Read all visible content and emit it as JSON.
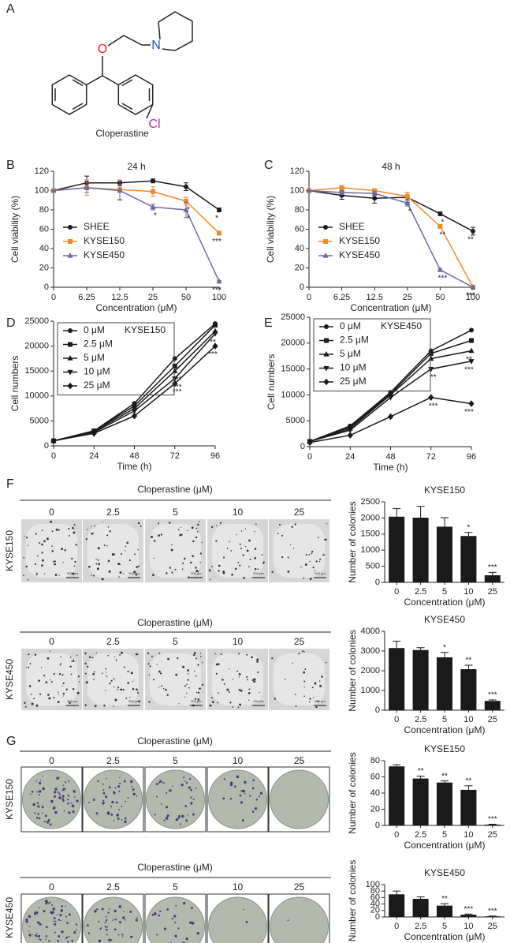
{
  "panel_labels": [
    "A",
    "B",
    "C",
    "D",
    "E",
    "F",
    "G"
  ],
  "structure": {
    "atoms": [
      "O",
      "N",
      "Cl"
    ],
    "name": "Cloperastine"
  },
  "image_panels": [
    {
      "header": "Cloperastine (μM)",
      "columns": [
        "0",
        "2.5",
        "5",
        "10",
        "25"
      ],
      "row_label": "KYSE150",
      "scale_label": "500 μm"
    },
    {
      "header": "Cloperastine (μM)",
      "columns": [
        "0",
        "2.5",
        "5",
        "10",
        "25"
      ],
      "row_label": "KYSE450",
      "scale_label": "500 μm"
    },
    {
      "header": "Cloperastine (μM)",
      "columns": [
        "0",
        "2.5",
        "5",
        "10",
        "25"
      ],
      "row_label": "KYSE150"
    },
    {
      "header": "Cloperastine (μM)",
      "columns": [
        "0",
        "2.5",
        "5",
        "10",
        "25"
      ],
      "row_label": "KYSE450"
    }
  ],
  "chart_data": [
    {
      "type": "line",
      "title": "24 h",
      "xlabel": "Concentration (μM)",
      "ylabel": "Cell viability (%)",
      "categories": [
        "0",
        "6.25",
        "12.5",
        "25",
        "50",
        "100"
      ],
      "ylim": [
        0,
        120
      ],
      "yticks": [
        0,
        20,
        40,
        60,
        80,
        100,
        120
      ],
      "legend": "bottom-left",
      "series": [
        {
          "name": "SHEE",
          "color": "#1a1a1a",
          "marker": "circle",
          "values": [
            100,
            108,
            108,
            110,
            104,
            80
          ],
          "errors": [
            0,
            7,
            3,
            2,
            4,
            2
          ],
          "significance": [
            null,
            null,
            null,
            null,
            null,
            "*"
          ]
        },
        {
          "name": "KYSE150",
          "color": "#f08a2c",
          "marker": "square",
          "values": [
            100,
            103,
            101,
            99,
            89,
            56
          ],
          "errors": [
            0,
            8,
            10,
            5,
            4,
            2
          ],
          "significance": [
            null,
            null,
            null,
            null,
            "*",
            "***"
          ]
        },
        {
          "name": "KYSE450",
          "color": "#6b6a9e",
          "marker": "triangle",
          "values": [
            100,
            103,
            100,
            83,
            80,
            6
          ],
          "errors": [
            0,
            5,
            10,
            3,
            8,
            1
          ],
          "significance": [
            null,
            null,
            null,
            "*",
            "*",
            "***"
          ]
        }
      ]
    },
    {
      "type": "line",
      "title": "48 h",
      "xlabel": "Concentration (μM)",
      "ylabel": "Cell viability (%)",
      "categories": [
        "0",
        "6.25",
        "12.5",
        "25",
        "50",
        "100"
      ],
      "ylim": [
        0,
        120
      ],
      "yticks": [
        0,
        20,
        40,
        60,
        80,
        100,
        120
      ],
      "legend": "bottom-left",
      "series": [
        {
          "name": "SHEE",
          "color": "#1a1a1a",
          "marker": "circle",
          "values": [
            100,
            95,
            92,
            93,
            76,
            58
          ],
          "errors": [
            0,
            4,
            5,
            5,
            2,
            4
          ],
          "significance": [
            null,
            null,
            null,
            null,
            "*",
            "**"
          ]
        },
        {
          "name": "KYSE150",
          "color": "#f08a2c",
          "marker": "square",
          "values": [
            100,
            103,
            100,
            94,
            63,
            0
          ],
          "errors": [
            0,
            2,
            2,
            4,
            2,
            1
          ],
          "significance": [
            null,
            null,
            null,
            null,
            "**",
            "***"
          ]
        },
        {
          "name": "KYSE450",
          "color": "#6b6a9e",
          "marker": "triangle",
          "values": [
            100,
            98,
            97,
            87,
            18,
            0
          ],
          "errors": [
            0,
            2,
            2,
            3,
            1,
            1
          ],
          "significance": [
            null,
            null,
            null,
            "*",
            "***",
            "***"
          ]
        }
      ]
    },
    {
      "type": "line",
      "title": "KYSE150",
      "xlabel": "Time (h)",
      "ylabel": "Cell numbers",
      "x": [
        0,
        24,
        48,
        72,
        96
      ],
      "xlim": [
        0,
        96
      ],
      "xticks": [
        0,
        24,
        48,
        72,
        96
      ],
      "ylim": [
        0,
        25000
      ],
      "yticks": [
        0,
        5000,
        10000,
        15000,
        20000,
        25000
      ],
      "legend": "top-left",
      "series": [
        {
          "name": "0 μM",
          "color": "#1a1a1a",
          "marker": "circle",
          "values": [
            1000,
            3000,
            8500,
            17500,
            24500
          ],
          "significance": [
            null,
            null,
            null,
            null,
            null
          ]
        },
        {
          "name": "2.5 μM",
          "color": "#1a1a1a",
          "marker": "square",
          "values": [
            1000,
            3000,
            8000,
            16000,
            24200
          ],
          "significance": [
            null,
            null,
            null,
            null,
            null
          ]
        },
        {
          "name": "5 μM",
          "color": "#1a1a1a",
          "marker": "triangle",
          "values": [
            1000,
            2900,
            7500,
            15000,
            23000
          ],
          "significance": [
            null,
            null,
            null,
            "***",
            null
          ]
        },
        {
          "name": "10 μM",
          "color": "#1a1a1a",
          "marker": "triangle-down",
          "values": [
            1000,
            2700,
            7000,
            13500,
            22500
          ],
          "significance": [
            null,
            null,
            null,
            "***",
            "**"
          ]
        },
        {
          "name": "25 μM",
          "color": "#1a1a1a",
          "marker": "diamond",
          "values": [
            1000,
            2500,
            6000,
            12500,
            20000
          ],
          "significance": [
            null,
            null,
            null,
            "***",
            "***"
          ]
        }
      ]
    },
    {
      "type": "line",
      "title": "KYSE450",
      "xlabel": "Time (h)",
      "ylabel": "Cell numbers",
      "x": [
        0,
        24,
        48,
        72,
        96
      ],
      "xlim": [
        0,
        96
      ],
      "xticks": [
        0,
        24,
        48,
        72,
        96
      ],
      "ylim": [
        0,
        25000
      ],
      "yticks": [
        0,
        5000,
        10000,
        15000,
        20000,
        25000
      ],
      "legend": "top-left",
      "series": [
        {
          "name": "0 μM",
          "color": "#1a1a1a",
          "marker": "circle",
          "values": [
            1000,
            4000,
            10500,
            18500,
            22500
          ],
          "significance": [
            null,
            null,
            null,
            null,
            null
          ]
        },
        {
          "name": "2.5 μM",
          "color": "#1a1a1a",
          "marker": "square",
          "values": [
            1000,
            3800,
            10200,
            18000,
            20500
          ],
          "significance": [
            null,
            null,
            null,
            null,
            null
          ]
        },
        {
          "name": "5 μM",
          "color": "#1a1a1a",
          "marker": "triangle",
          "values": [
            1000,
            3500,
            10000,
            17000,
            18500
          ],
          "significance": [
            null,
            null,
            null,
            null,
            "**"
          ]
        },
        {
          "name": "10 μM",
          "color": "#1a1a1a",
          "marker": "triangle-down",
          "values": [
            1000,
            3200,
            9500,
            15000,
            16500
          ],
          "significance": [
            null,
            null,
            null,
            "**",
            "***"
          ]
        },
        {
          "name": "25 μM",
          "color": "#1a1a1a",
          "marker": "diamond",
          "values": [
            800,
            2200,
            5800,
            9500,
            8300
          ],
          "significance": [
            null,
            null,
            null,
            "***",
            "***"
          ]
        }
      ]
    },
    {
      "type": "bar",
      "title": "KYSE150",
      "xlabel": "Concentration (μM)",
      "ylabel": "Number of colonies",
      "color": "#1a1a1a",
      "categories": [
        "0",
        "2.5",
        "5",
        "10",
        "25"
      ],
      "values": [
        2040,
        2010,
        1730,
        1440,
        220
      ],
      "errors": [
        250,
        350,
        280,
        110,
        90
      ],
      "significance": [
        null,
        null,
        null,
        "*",
        "***"
      ],
      "ylim": [
        0,
        2500
      ],
      "yticks": [
        0,
        500,
        1000,
        1500,
        2000,
        2500
      ]
    },
    {
      "type": "bar",
      "title": "KYSE450",
      "xlabel": "Concentration (μM)",
      "ylabel": "Number of colonies",
      "color": "#1a1a1a",
      "categories": [
        "0",
        "2.5",
        "5",
        "10",
        "25"
      ],
      "values": [
        3150,
        3050,
        2680,
        2080,
        470
      ],
      "errors": [
        350,
        120,
        250,
        200,
        50
      ],
      "significance": [
        null,
        null,
        "*",
        "**",
        "***"
      ],
      "ylim": [
        0,
        4000
      ],
      "yticks": [
        0,
        1000,
        2000,
        3000,
        4000
      ]
    },
    {
      "type": "bar",
      "title": "KYSE150",
      "xlabel": "Concentration (μM)",
      "ylabel": "Number of colonies",
      "color": "#1a1a1a",
      "categories": [
        "0",
        "2.5",
        "5",
        "10",
        "25"
      ],
      "values": [
        73,
        58,
        53,
        44,
        1
      ],
      "errors": [
        2,
        3,
        2,
        5,
        0.5
      ],
      "significance": [
        null,
        "**",
        "**",
        "**",
        "***"
      ],
      "ylim": [
        0,
        80
      ],
      "yticks": [
        0,
        20,
        40,
        60,
        80
      ]
    },
    {
      "type": "bar",
      "title": "KYSE450",
      "xlabel": "Concentration (μM)",
      "ylabel": "Number of colonies",
      "color": "#1a1a1a",
      "categories": [
        "0",
        "2.5",
        "5",
        "10",
        "25"
      ],
      "values": [
        70,
        56,
        35,
        7,
        2
      ],
      "errors": [
        10,
        6,
        6,
        2,
        1
      ],
      "significance": [
        null,
        null,
        "**",
        "***",
        "***"
      ],
      "ylim": [
        0,
        100
      ],
      "yticks": [
        0,
        20,
        40,
        60,
        80,
        100
      ]
    }
  ]
}
